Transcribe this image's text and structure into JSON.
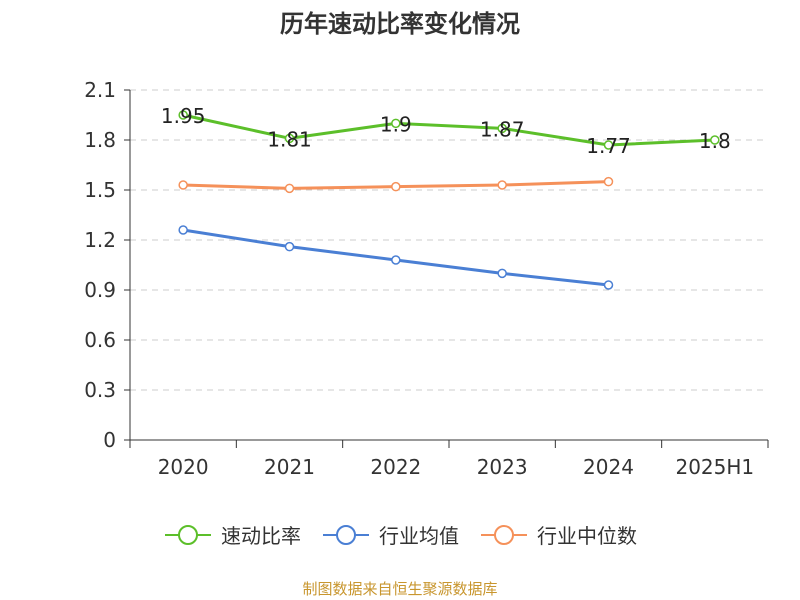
{
  "chart_data": {
    "type": "line",
    "title": "历年速动比率变化情况",
    "categories": [
      "2020",
      "2021",
      "2022",
      "2023",
      "2024",
      "2025H1"
    ],
    "ylim": [
      0,
      2.1
    ],
    "yticks": [
      "0",
      "0.3",
      "0.6",
      "0.9",
      "1.2",
      "1.5",
      "1.8",
      "2.1"
    ],
    "grid": true,
    "legend_position": "bottom",
    "series": [
      {
        "name": "速动比率",
        "color": "#5cbf2a",
        "values": [
          1.95,
          1.81,
          1.9,
          1.87,
          1.77,
          1.8
        ],
        "labels": [
          "1.95",
          "1.81",
          "1.9",
          "1.87",
          "1.77",
          "1.8"
        ]
      },
      {
        "name": "行业均值",
        "color": "#4a7fd4",
        "values": [
          1.26,
          1.16,
          1.08,
          1.0,
          0.93,
          null
        ]
      },
      {
        "name": "行业中位数",
        "color": "#f5915a",
        "values": [
          1.53,
          1.51,
          1.52,
          1.53,
          1.55,
          null
        ]
      }
    ]
  },
  "footer": {
    "source": "制图数据来自恒生聚源数据库"
  }
}
